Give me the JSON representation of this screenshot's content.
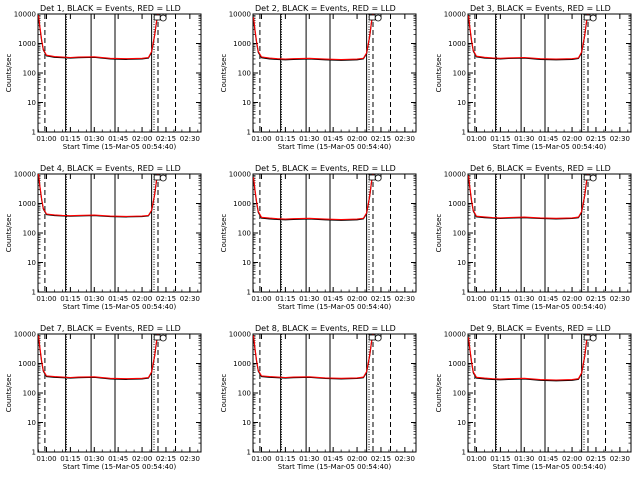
{
  "figure": {
    "x_tick_labels": [
      "01:00",
      "01:15",
      "01:30",
      "01:45",
      "02:00",
      "02:15",
      "02:30"
    ],
    "y_tick_labels": [
      "1",
      "10",
      "100",
      "1000",
      "10000"
    ],
    "x_label": "Start Time (15-Mar-05 00:54:40)",
    "y_label": "Counts/sec",
    "colors": {
      "events": "#000000",
      "lld": "#ff0000",
      "markers": "#000000"
    }
  },
  "chart_data": [
    {
      "type": "line",
      "title": "Det 1, BLACK = Events, RED = LLD",
      "xlabel": "Start Time (15-Mar-05 00:54:40)",
      "ylabel": "Counts/sec",
      "xlim": [
        "00:54:40",
        "02:37:00"
      ],
      "ylim": [
        1,
        10000
      ],
      "yscale": "log",
      "x_ticks": [
        "01:00",
        "01:15",
        "01:30",
        "01:45",
        "02:00",
        "02:15",
        "02:30"
      ],
      "y_ticks": [
        1,
        10,
        100,
        1000,
        10000
      ],
      "vlines_solid": [
        "01:12:00",
        "01:28:00",
        "01:43:00",
        "02:06:00"
      ],
      "vlines_dotted": [
        "01:12:30",
        "02:07:30"
      ],
      "vlines_dashed": [
        "00:59:00",
        "02:10:00",
        "02:21:00"
      ],
      "x": [
        "00:55",
        "00:56",
        "00:57",
        "00:58",
        "01:00",
        "01:05",
        "01:10",
        "01:15",
        "01:20",
        "01:30",
        "01:40",
        "01:50",
        "02:00",
        "02:04",
        "02:06",
        "02:08",
        "02:09",
        "02:10"
      ],
      "series": [
        {
          "name": "Events",
          "color": "#000000",
          "values": [
            8000,
            3000,
            1200,
            600,
            380,
            340,
            330,
            320,
            330,
            340,
            300,
            290,
            300,
            320,
            500,
            2000,
            5000,
            10000
          ]
        },
        {
          "name": "LLD",
          "color": "#ff0000",
          "values": [
            9000,
            3300,
            1300,
            640,
            400,
            360,
            345,
            335,
            345,
            355,
            315,
            305,
            315,
            335,
            530,
            2100,
            5300,
            10000
          ]
        }
      ]
    },
    {
      "type": "line",
      "title": "Det 2, BLACK = Events, RED = LLD",
      "xlabel": "Start Time (15-Mar-05 00:54:40)",
      "ylabel": "Counts/sec",
      "xlim": [
        "00:54:40",
        "02:37:00"
      ],
      "ylim": [
        1,
        10000
      ],
      "yscale": "log",
      "x_ticks": [
        "01:00",
        "01:15",
        "01:30",
        "01:45",
        "02:00",
        "02:15",
        "02:30"
      ],
      "y_ticks": [
        1,
        10,
        100,
        1000,
        10000
      ],
      "vlines_solid": [
        "01:12:00",
        "01:28:00",
        "01:43:00",
        "02:06:00"
      ],
      "vlines_dotted": [
        "01:12:30",
        "02:07:30"
      ],
      "vlines_dashed": [
        "00:59:00",
        "02:10:00",
        "02:21:00"
      ],
      "x": [
        "00:55",
        "00:56",
        "00:57",
        "00:58",
        "01:00",
        "01:05",
        "01:10",
        "01:15",
        "01:20",
        "01:30",
        "01:40",
        "01:50",
        "02:00",
        "02:04",
        "02:06",
        "02:08",
        "02:09",
        "02:10"
      ],
      "series": [
        {
          "name": "Events",
          "color": "#000000",
          "values": [
            7000,
            2500,
            1000,
            500,
            330,
            300,
            290,
            280,
            290,
            300,
            280,
            270,
            280,
            300,
            450,
            1800,
            5000,
            10000
          ]
        },
        {
          "name": "LLD",
          "color": "#ff0000",
          "values": [
            7700,
            2750,
            1100,
            540,
            350,
            320,
            305,
            295,
            305,
            315,
            295,
            285,
            295,
            315,
            480,
            1900,
            5300,
            10000
          ]
        }
      ]
    },
    {
      "type": "line",
      "title": "Det 3, BLACK = Events, RED = LLD",
      "xlabel": "Start Time (15-Mar-05 00:54:40)",
      "ylabel": "Counts/sec",
      "xlim": [
        "00:54:40",
        "02:37:00"
      ],
      "ylim": [
        1,
        10000
      ],
      "yscale": "log",
      "x_ticks": [
        "01:00",
        "01:15",
        "01:30",
        "01:45",
        "02:00",
        "02:15",
        "02:30"
      ],
      "y_ticks": [
        1,
        10,
        100,
        1000,
        10000
      ],
      "vlines_solid": [
        "01:12:00",
        "01:28:00",
        "01:43:00",
        "02:06:00"
      ],
      "vlines_dotted": [
        "01:12:30",
        "02:07:30"
      ],
      "vlines_dashed": [
        "00:59:00",
        "02:10:00",
        "02:21:00"
      ],
      "x": [
        "00:55",
        "00:56",
        "00:57",
        "00:58",
        "01:00",
        "01:05",
        "01:10",
        "01:15",
        "01:20",
        "01:30",
        "01:40",
        "01:50",
        "02:00",
        "02:04",
        "02:06",
        "02:08",
        "02:09",
        "02:10"
      ],
      "series": [
        {
          "name": "Events",
          "color": "#000000",
          "values": [
            8000,
            2800,
            1100,
            550,
            350,
            320,
            310,
            300,
            310,
            320,
            290,
            280,
            290,
            310,
            480,
            1900,
            5000,
            10000
          ]
        },
        {
          "name": "LLD",
          "color": "#ff0000",
          "values": [
            8800,
            3100,
            1200,
            590,
            370,
            340,
            325,
            315,
            325,
            335,
            305,
            295,
            305,
            325,
            510,
            2000,
            5300,
            10000
          ]
        }
      ]
    },
    {
      "type": "line",
      "title": "Det 4, BLACK = Events, RED = LLD",
      "xlabel": "Start Time (15-Mar-05 00:54:40)",
      "ylabel": "Counts/sec",
      "xlim": [
        "00:54:40",
        "02:37:00"
      ],
      "ylim": [
        1,
        10000
      ],
      "yscale": "log",
      "x_ticks": [
        "01:00",
        "01:15",
        "01:30",
        "01:45",
        "02:00",
        "02:15",
        "02:30"
      ],
      "y_ticks": [
        1,
        10,
        100,
        1000,
        10000
      ],
      "vlines_solid": [
        "01:12:00",
        "01:28:00",
        "01:43:00",
        "02:06:00"
      ],
      "vlines_dotted": [
        "01:12:30",
        "02:07:30"
      ],
      "vlines_dashed": [
        "00:59:00",
        "02:10:00",
        "02:21:00"
      ],
      "x": [
        "00:55",
        "00:56",
        "00:57",
        "00:58",
        "01:00",
        "01:05",
        "01:10",
        "01:15",
        "01:20",
        "01:30",
        "01:40",
        "01:50",
        "02:00",
        "02:04",
        "02:06",
        "02:08",
        "02:09",
        "02:10"
      ],
      "series": [
        {
          "name": "Events",
          "color": "#000000",
          "values": [
            9000,
            3200,
            1300,
            650,
            420,
            390,
            380,
            370,
            380,
            390,
            360,
            350,
            360,
            380,
            560,
            2100,
            5500,
            10000
          ]
        },
        {
          "name": "LLD",
          "color": "#ff0000",
          "values": [
            9900,
            3500,
            1400,
            690,
            440,
            410,
            395,
            385,
            395,
            405,
            375,
            365,
            375,
            395,
            590,
            2200,
            5800,
            10000
          ]
        }
      ]
    },
    {
      "type": "line",
      "title": "Det 5, BLACK = Events, RED = LLD",
      "xlabel": "Start Time (15-Mar-05 00:54:40)",
      "ylabel": "Counts/sec",
      "xlim": [
        "00:54:40",
        "02:37:00"
      ],
      "ylim": [
        1,
        10000
      ],
      "yscale": "log",
      "x_ticks": [
        "01:00",
        "01:15",
        "01:30",
        "01:45",
        "02:00",
        "02:15",
        "02:30"
      ],
      "y_ticks": [
        1,
        10,
        100,
        1000,
        10000
      ],
      "vlines_solid": [
        "01:12:00",
        "01:28:00",
        "01:43:00",
        "02:06:00"
      ],
      "vlines_dotted": [
        "01:12:30",
        "02:07:30"
      ],
      "vlines_dashed": [
        "00:59:00",
        "02:10:00",
        "02:21:00"
      ],
      "x": [
        "00:55",
        "00:56",
        "00:57",
        "00:58",
        "01:00",
        "01:05",
        "01:10",
        "01:15",
        "01:20",
        "01:30",
        "01:40",
        "01:50",
        "02:00",
        "02:04",
        "02:06",
        "02:08",
        "02:09",
        "02:10"
      ],
      "series": [
        {
          "name": "Events",
          "color": "#000000",
          "values": [
            7000,
            2500,
            1000,
            500,
            320,
            300,
            290,
            280,
            290,
            300,
            280,
            270,
            280,
            300,
            450,
            1800,
            5000,
            10000
          ]
        },
        {
          "name": "LLD",
          "color": "#ff0000",
          "values": [
            7700,
            2750,
            1100,
            540,
            340,
            320,
            305,
            295,
            305,
            315,
            295,
            285,
            295,
            315,
            480,
            1900,
            5300,
            10000
          ]
        }
      ]
    },
    {
      "type": "line",
      "title": "Det 6, BLACK = Events, RED = LLD",
      "xlabel": "Start Time (15-Mar-05 00:54:40)",
      "ylabel": "Counts/sec",
      "xlim": [
        "00:54:40",
        "02:37:00"
      ],
      "ylim": [
        1,
        10000
      ],
      "yscale": "log",
      "x_ticks": [
        "01:00",
        "01:15",
        "01:30",
        "01:45",
        "02:00",
        "02:15",
        "02:30"
      ],
      "y_ticks": [
        1,
        10,
        100,
        1000,
        10000
      ],
      "vlines_solid": [
        "01:12:00",
        "01:28:00",
        "01:43:00",
        "02:06:00"
      ],
      "vlines_dotted": [
        "01:12:30",
        "02:07:30"
      ],
      "vlines_dashed": [
        "00:59:00",
        "02:10:00",
        "02:21:00"
      ],
      "x": [
        "00:55",
        "00:56",
        "00:57",
        "00:58",
        "01:00",
        "01:05",
        "01:10",
        "01:15",
        "01:20",
        "01:30",
        "01:40",
        "01:50",
        "02:00",
        "02:04",
        "02:06",
        "02:08",
        "02:09",
        "02:10"
      ],
      "series": [
        {
          "name": "Events",
          "color": "#000000",
          "values": [
            8000,
            2800,
            1100,
            550,
            350,
            330,
            320,
            310,
            320,
            330,
            310,
            300,
            310,
            330,
            500,
            1900,
            5000,
            10000
          ]
        },
        {
          "name": "LLD",
          "color": "#ff0000",
          "values": [
            8800,
            3100,
            1200,
            590,
            370,
            350,
            335,
            325,
            335,
            345,
            325,
            315,
            325,
            345,
            530,
            2000,
            5300,
            10000
          ]
        }
      ]
    },
    {
      "type": "line",
      "title": "Det 7, BLACK = Events, RED = LLD",
      "xlabel": "Start Time (15-Mar-05 00:54:40)",
      "ylabel": "Counts/sec",
      "xlim": [
        "00:54:40",
        "02:37:00"
      ],
      "ylim": [
        1,
        10000
      ],
      "yscale": "log",
      "x_ticks": [
        "01:00",
        "01:15",
        "01:30",
        "01:45",
        "02:00",
        "02:15",
        "02:30"
      ],
      "y_ticks": [
        1,
        10,
        100,
        1000,
        10000
      ],
      "vlines_solid": [
        "01:12:00",
        "01:28:00",
        "01:43:00",
        "02:06:00"
      ],
      "vlines_dotted": [
        "01:12:30",
        "02:07:30"
      ],
      "vlines_dashed": [
        "00:59:00",
        "02:10:00",
        "02:21:00"
      ],
      "x": [
        "00:55",
        "00:56",
        "00:57",
        "00:58",
        "01:00",
        "01:05",
        "01:10",
        "01:15",
        "01:20",
        "01:30",
        "01:40",
        "01:50",
        "02:00",
        "02:04",
        "02:06",
        "02:08",
        "02:09",
        "02:10"
      ],
      "series": [
        {
          "name": "Events",
          "color": "#000000",
          "values": [
            8000,
            2800,
            1100,
            550,
            360,
            340,
            330,
            320,
            330,
            340,
            300,
            290,
            300,
            320,
            490,
            1900,
            5000,
            10000
          ]
        },
        {
          "name": "LLD",
          "color": "#ff0000",
          "values": [
            8800,
            3100,
            1200,
            590,
            380,
            360,
            345,
            335,
            345,
            355,
            315,
            305,
            315,
            335,
            520,
            2000,
            5300,
            10000
          ]
        }
      ]
    },
    {
      "type": "line",
      "title": "Det 8, BLACK = Events, RED = LLD",
      "xlabel": "Start Time (15-Mar-05 00:54:40)",
      "ylabel": "Counts/sec",
      "xlim": [
        "00:54:40",
        "02:37:00"
      ],
      "ylim": [
        1,
        10000
      ],
      "yscale": "log",
      "x_ticks": [
        "01:00",
        "01:15",
        "01:30",
        "01:45",
        "02:00",
        "02:15",
        "02:30"
      ],
      "y_ticks": [
        1,
        10,
        100,
        1000,
        10000
      ],
      "vlines_solid": [
        "01:12:00",
        "01:28:00",
        "01:43:00",
        "02:06:00"
      ],
      "vlines_dotted": [
        "01:12:30",
        "02:07:30"
      ],
      "vlines_dashed": [
        "00:59:00",
        "02:10:00",
        "02:21:00"
      ],
      "x": [
        "00:55",
        "00:56",
        "00:57",
        "00:58",
        "01:00",
        "01:05",
        "01:10",
        "01:15",
        "01:20",
        "01:30",
        "01:40",
        "01:50",
        "02:00",
        "02:04",
        "02:06",
        "02:08",
        "02:09",
        "02:10"
      ],
      "series": [
        {
          "name": "Events",
          "color": "#000000",
          "values": [
            8000,
            2800,
            1100,
            550,
            360,
            340,
            330,
            320,
            330,
            340,
            310,
            300,
            310,
            330,
            500,
            1900,
            5000,
            10000
          ]
        },
        {
          "name": "LLD",
          "color": "#ff0000",
          "values": [
            8800,
            3100,
            1200,
            590,
            380,
            360,
            345,
            335,
            345,
            355,
            325,
            315,
            325,
            345,
            530,
            2000,
            5300,
            10000
          ]
        }
      ]
    },
    {
      "type": "line",
      "title": "Det 9, BLACK = Events, RED = LLD",
      "xlabel": "Start Time (15-Mar-05 00:54:40)",
      "ylabel": "Counts/sec",
      "xlim": [
        "00:54:40",
        "02:37:00"
      ],
      "ylim": [
        1,
        10000
      ],
      "yscale": "log",
      "x_ticks": [
        "01:00",
        "01:15",
        "01:30",
        "01:45",
        "02:00",
        "02:15",
        "02:30"
      ],
      "y_ticks": [
        1,
        10,
        100,
        1000,
        10000
      ],
      "vlines_solid": [
        "01:12:00",
        "01:28:00",
        "01:43:00",
        "02:06:00"
      ],
      "vlines_dotted": [
        "01:12:30",
        "02:07:30"
      ],
      "vlines_dashed": [
        "00:59:00",
        "02:10:00",
        "02:21:00"
      ],
      "x": [
        "00:55",
        "00:56",
        "00:57",
        "00:58",
        "01:00",
        "01:05",
        "01:10",
        "01:15",
        "01:20",
        "01:30",
        "01:40",
        "01:50",
        "02:00",
        "02:04",
        "02:06",
        "02:08",
        "02:09",
        "02:10"
      ],
      "series": [
        {
          "name": "Events",
          "color": "#000000",
          "values": [
            7000,
            2500,
            1000,
            480,
            320,
            300,
            290,
            280,
            290,
            300,
            270,
            260,
            270,
            290,
            450,
            1800,
            5000,
            10000
          ]
        },
        {
          "name": "LLD",
          "color": "#ff0000",
          "values": [
            7700,
            2750,
            1100,
            520,
            340,
            320,
            305,
            295,
            305,
            315,
            285,
            275,
            285,
            305,
            480,
            1900,
            5300,
            10000
          ]
        }
      ]
    }
  ]
}
